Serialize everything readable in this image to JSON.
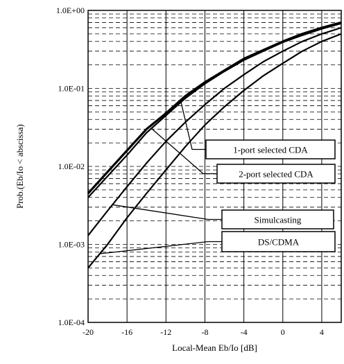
{
  "chart_data": {
    "type": "line",
    "xlabel": "Local-Mean Eb/Io [dB]",
    "ylabel": "Prob.(Eb/Io < abscissa)",
    "xlim": [
      -20,
      6
    ],
    "ylim": [
      0.0001,
      1
    ],
    "yscale": "log",
    "grid": true,
    "x_ticks": [
      -20,
      -16,
      -12,
      -8,
      -4,
      0,
      4
    ],
    "x_tick_labels": [
      "-20",
      "-16",
      "-12",
      "-8",
      "-4",
      "0",
      "4"
    ],
    "y_ticks": [
      0.0001,
      0.001,
      0.01,
      0.1,
      1
    ],
    "y_tick_labels": [
      "1.0E-04",
      "1.0E-03",
      "1.0E-02",
      "1.0E-01",
      "1.0E+00"
    ],
    "legend_placement": "callout boxes, lower right",
    "series": [
      {
        "name": "1-port selected CDA",
        "x": [
          -20,
          -18,
          -16,
          -14,
          -12,
          -10,
          -8,
          -6,
          -4,
          -2,
          0,
          2,
          4,
          6
        ],
        "y": [
          0.0045,
          0.0085,
          0.016,
          0.03,
          0.048,
          0.08,
          0.12,
          0.17,
          0.24,
          0.31,
          0.4,
          0.5,
          0.6,
          0.7
        ]
      },
      {
        "name": "2-port selected CDA",
        "x": [
          -20,
          -18,
          -16,
          -14,
          -12,
          -10,
          -8,
          -6,
          -4,
          -2,
          0,
          2,
          4,
          6
        ],
        "y": [
          0.004,
          0.0075,
          0.014,
          0.027,
          0.045,
          0.075,
          0.115,
          0.165,
          0.23,
          0.3,
          0.39,
          0.48,
          0.58,
          0.68
        ]
      },
      {
        "name": "Simulcasting",
        "x": [
          -20,
          -18,
          -16,
          -14,
          -12,
          -10,
          -8,
          -6,
          -4,
          -2,
          0,
          2,
          4,
          6
        ],
        "y": [
          0.0013,
          0.0027,
          0.0055,
          0.011,
          0.021,
          0.037,
          0.062,
          0.1,
          0.15,
          0.22,
          0.3,
          0.4,
          0.5,
          0.6
        ]
      },
      {
        "name": "DS/CDMA",
        "x": [
          -20,
          -18,
          -16,
          -14,
          -12,
          -10,
          -8,
          -6,
          -4,
          -2,
          0,
          2,
          4,
          6
        ],
        "y": [
          0.0005,
          0.001,
          0.0022,
          0.0045,
          0.009,
          0.018,
          0.034,
          0.058,
          0.094,
          0.145,
          0.21,
          0.3,
          0.4,
          0.5
        ]
      }
    ]
  }
}
